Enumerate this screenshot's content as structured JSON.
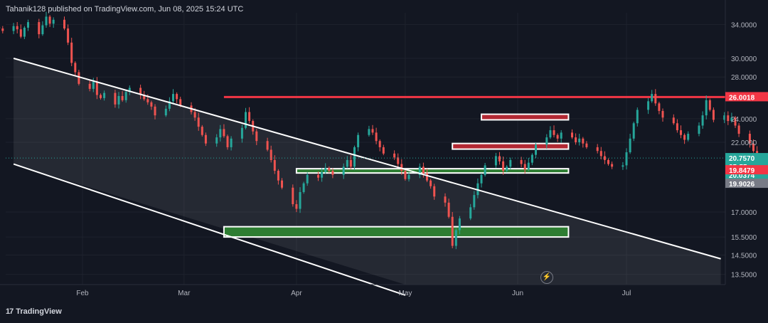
{
  "header": {
    "publisher_line": "Tahanik128 published on TradingView.com, Jun 08, 2025 15:24 UTC"
  },
  "footer": {
    "logo_text": "TradingView",
    "logo_mark": "17"
  },
  "colors": {
    "background": "#131722",
    "up_candle": "#26a69a",
    "down_candle": "#ef5350",
    "resistance": "#f23645",
    "support": "#2e7d32",
    "channel": "#ffffff"
  },
  "chart_data": {
    "type": "candlestick",
    "symbol": "",
    "y_axis": {
      "scale": "log",
      "range": [
        13.0,
        35.5
      ],
      "ticks": [
        "34.0000",
        "30.0000",
        "28.0000",
        "24.0000",
        "22.0000",
        "17.0000",
        "15.5000",
        "14.5000",
        "13.5000"
      ]
    },
    "x_axis": {
      "ticks": [
        "Feb",
        "Mar",
        "Apr",
        "May",
        "Jun",
        "Jul"
      ]
    },
    "price_labels": [
      {
        "text": "26.0018",
        "value": 26.0018,
        "role": "resistance-level",
        "color": "#f23645"
      },
      {
        "text": "20.7570",
        "value": 20.757,
        "role": "last-price",
        "color": "#26a69a"
      },
      {
        "text": "35:55",
        "role": "countdown",
        "color": "#26a69a"
      },
      {
        "text": "20.0374",
        "value": 20.0374,
        "role": "high",
        "color": "#26a69a"
      },
      {
        "text": "19.9026",
        "value": 19.9026,
        "role": "support-level",
        "color": "#787b86"
      },
      {
        "text": "19.8479",
        "value": 19.8479,
        "role": "low",
        "color": "#f23645"
      }
    ],
    "horizontal_line": {
      "value": 26.0018,
      "from": "2025-03-12",
      "color": "#f23645"
    },
    "zones": [
      {
        "kind": "resistance",
        "from": "2025-05-22",
        "to": "2025-06-15",
        "top": 24.4,
        "bottom": 23.9
      },
      {
        "kind": "resistance",
        "from": "2025-05-14",
        "to": "2025-06-15",
        "top": 21.9,
        "bottom": 21.45
      },
      {
        "kind": "support",
        "from": "2025-04-01",
        "to": "2025-06-15",
        "top": 19.95,
        "bottom": 19.65
      },
      {
        "kind": "support",
        "from": "2025-03-12",
        "to": "2025-06-15",
        "top": 16.1,
        "bottom": 15.5
      }
    ],
    "channel": {
      "upper": [
        [
          "2025-01-13",
          30.0
        ],
        [
          "2025-07-27",
          14.3
        ]
      ],
      "lower": [
        [
          "2025-01-13",
          20.3
        ],
        [
          "2025-05-01",
          12.5
        ]
      ]
    },
    "candles": {
      "start": "2025-01-09",
      "closes": [
        33.5,
        33.2,
        33.8,
        33.4,
        32.5,
        33.6,
        34.3,
        32.8,
        33.9,
        35.0,
        34.1,
        34.6,
        33.5,
        31.8,
        29.5,
        28.5,
        27.3,
        26.8,
        27.5,
        26.2,
        25.9,
        26.4,
        25.3,
        26.1,
        25.7,
        26.5,
        26.9,
        26.2,
        25.8,
        25.5,
        25.1,
        24.3,
        24.9,
        25.6,
        26.3,
        25.8,
        25.2,
        24.6,
        24.1,
        23.3,
        22.6,
        21.9,
        22.4,
        23.1,
        22.5,
        21.6,
        22.3,
        23.2,
        24.6,
        23.8,
        22.9,
        22.1,
        21.4,
        20.6,
        19.8,
        19.1,
        18.6,
        17.5,
        17.2,
        18.3,
        18.9,
        19.5,
        19.3,
        19.7,
        20.0,
        19.8,
        19.5,
        20.1,
        20.6,
        20.1,
        21.6,
        22.6,
        23.1,
        22.8,
        22.1,
        21.6,
        21.1,
        20.8,
        20.3,
        19.8,
        19.2,
        19.5,
        20.1,
        19.6,
        19.1,
        18.7,
        18.0,
        17.6,
        16.7,
        15.0,
        15.9,
        16.6,
        17.3,
        18.1,
        18.9,
        19.5,
        20.2,
        20.9,
        20.5,
        19.8,
        20.1,
        20.6,
        20.3,
        19.9,
        20.4,
        21.0,
        21.8,
        22.4,
        23.0,
        22.6,
        22.3,
        22.8,
        22.4,
        22.0,
        22.3,
        21.9,
        21.6,
        21.3,
        20.9,
        20.6,
        20.3,
        20.1,
        20.2,
        21.2,
        22.3,
        23.6,
        24.8,
        25.6,
        26.3,
        25.4,
        24.7,
        24.1,
        23.6,
        23.0,
        22.6,
        22.2,
        22.7,
        23.4,
        24.3,
        25.7,
        24.8,
        23.9,
        24.3,
        23.8,
        24.1,
        23.4,
        22.7,
        21.9,
        21.3,
        20.7,
        20.3,
        20.8,
        21.3,
        21.0,
        20.6,
        20.2,
        19.9,
        20.3,
        20.76
      ]
    }
  }
}
